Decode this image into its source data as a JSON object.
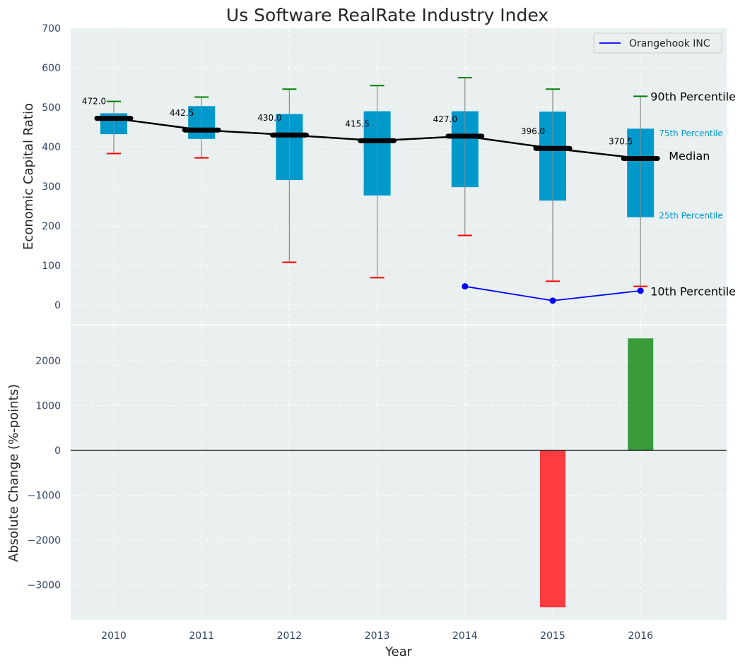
{
  "chart_data": [
    {
      "type": "box",
      "title": "Us Software RealRate Industry Index",
      "xlabel": "",
      "ylabel": "Economic Capital Ratio",
      "ylim": [
        0,
        700
      ],
      "yticks": [
        0,
        100,
        200,
        300,
        400,
        500,
        600,
        700
      ],
      "categories": [
        "2010",
        "2011",
        "2012",
        "2013",
        "2014",
        "2015",
        "2016"
      ],
      "grid": true,
      "legend_position": "top-right",
      "percentiles": {
        "p10": [
          383,
          372,
          108,
          69,
          176,
          60,
          47
        ],
        "p25": [
          432,
          420,
          316,
          277,
          298,
          264,
          222
        ],
        "median": [
          472.0,
          442.5,
          430.0,
          415.5,
          427.0,
          396.0,
          370.5
        ],
        "p75": [
          485,
          503,
          483,
          490,
          490,
          489,
          446
        ],
        "p90": [
          515,
          526,
          546,
          555,
          575,
          546,
          528
        ]
      },
      "median_labels": [
        "472.0",
        "442.5",
        "430.0",
        "415.5",
        "427.0",
        "396.0",
        "370.5"
      ],
      "series": [
        {
          "name": "Orangehook INC",
          "x": [
            "2014",
            "2015",
            "2016"
          ],
          "values": [
            47,
            11,
            36
          ],
          "color": "#0000ff"
        }
      ],
      "annotations": {
        "p90": "90th Percentile",
        "p75": "75th Percentile",
        "median": "Median",
        "p25": "25th Percentile",
        "p10": "10th Percentile"
      },
      "colors": {
        "box": "#0099cc",
        "whisker": "#8c8c8c",
        "p90_cap": "#008000",
        "p10_cap": "#ff0000",
        "median_line": "#000000",
        "background": "#eaeff0"
      }
    },
    {
      "type": "bar",
      "title": "",
      "xlabel": "Year",
      "ylabel": "Absolute Change (%-points)",
      "ylim": [
        -3800,
        2800
      ],
      "yticks": [
        -3000,
        -2000,
        -1000,
        0,
        1000,
        2000
      ],
      "ytick_labels": [
        "−3000",
        "−2000",
        "−1000",
        "0",
        "1000",
        "2000"
      ],
      "categories": [
        "2010",
        "2011",
        "2012",
        "2013",
        "2014",
        "2015",
        "2016"
      ],
      "bars": [
        {
          "x": "2015",
          "value": -3500,
          "color": "#ff3b3f"
        },
        {
          "x": "2016",
          "value": 2500,
          "color": "#3a9b3a"
        }
      ],
      "grid": true,
      "colors": {
        "background": "#eaeff0",
        "zero_line": "#000000"
      }
    }
  ]
}
